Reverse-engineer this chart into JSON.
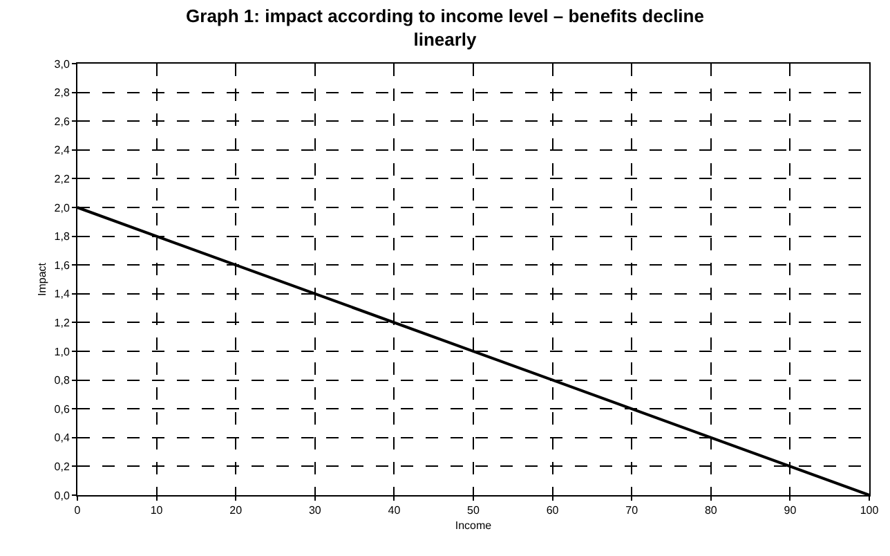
{
  "chart_data": {
    "type": "line",
    "title": "Graph 1: impact according to income level – benefits decline\nlinearly",
    "xlabel": "Income",
    "ylabel": "Impact",
    "x": [
      0,
      100
    ],
    "series": [
      {
        "color": "#000000",
        "values": [
          2.0,
          0.0
        ]
      }
    ],
    "xlim": [
      0,
      100
    ],
    "xticks": [
      0,
      10,
      20,
      30,
      40,
      50,
      60,
      70,
      80,
      90,
      100
    ],
    "ylim": [
      0,
      3
    ],
    "yticks": [
      {
        "value": 0,
        "label": "0,0"
      },
      {
        "value": 0.2,
        "label": "0,2"
      },
      {
        "value": 0.4,
        "label": "0,4"
      },
      {
        "value": 0.6,
        "label": "0,6"
      },
      {
        "value": 0.8,
        "label": "0,8"
      },
      {
        "value": 1.0,
        "label": "1,0"
      },
      {
        "value": 1.2,
        "label": "1,2"
      },
      {
        "value": 1.4,
        "label": "1,4"
      },
      {
        "value": 1.6,
        "label": "1,6"
      },
      {
        "value": 1.8,
        "label": "1,8"
      },
      {
        "value": 2.0,
        "label": "2,0"
      },
      {
        "value": 2.2,
        "label": "2,2"
      },
      {
        "value": 2.4,
        "label": "2,4"
      },
      {
        "value": 2.6,
        "label": "2,6"
      },
      {
        "value": 2.8,
        "label": "2,8"
      },
      {
        "value": 3.0,
        "label": "3,0"
      }
    ],
    "grid": true,
    "line_style": "solid"
  }
}
